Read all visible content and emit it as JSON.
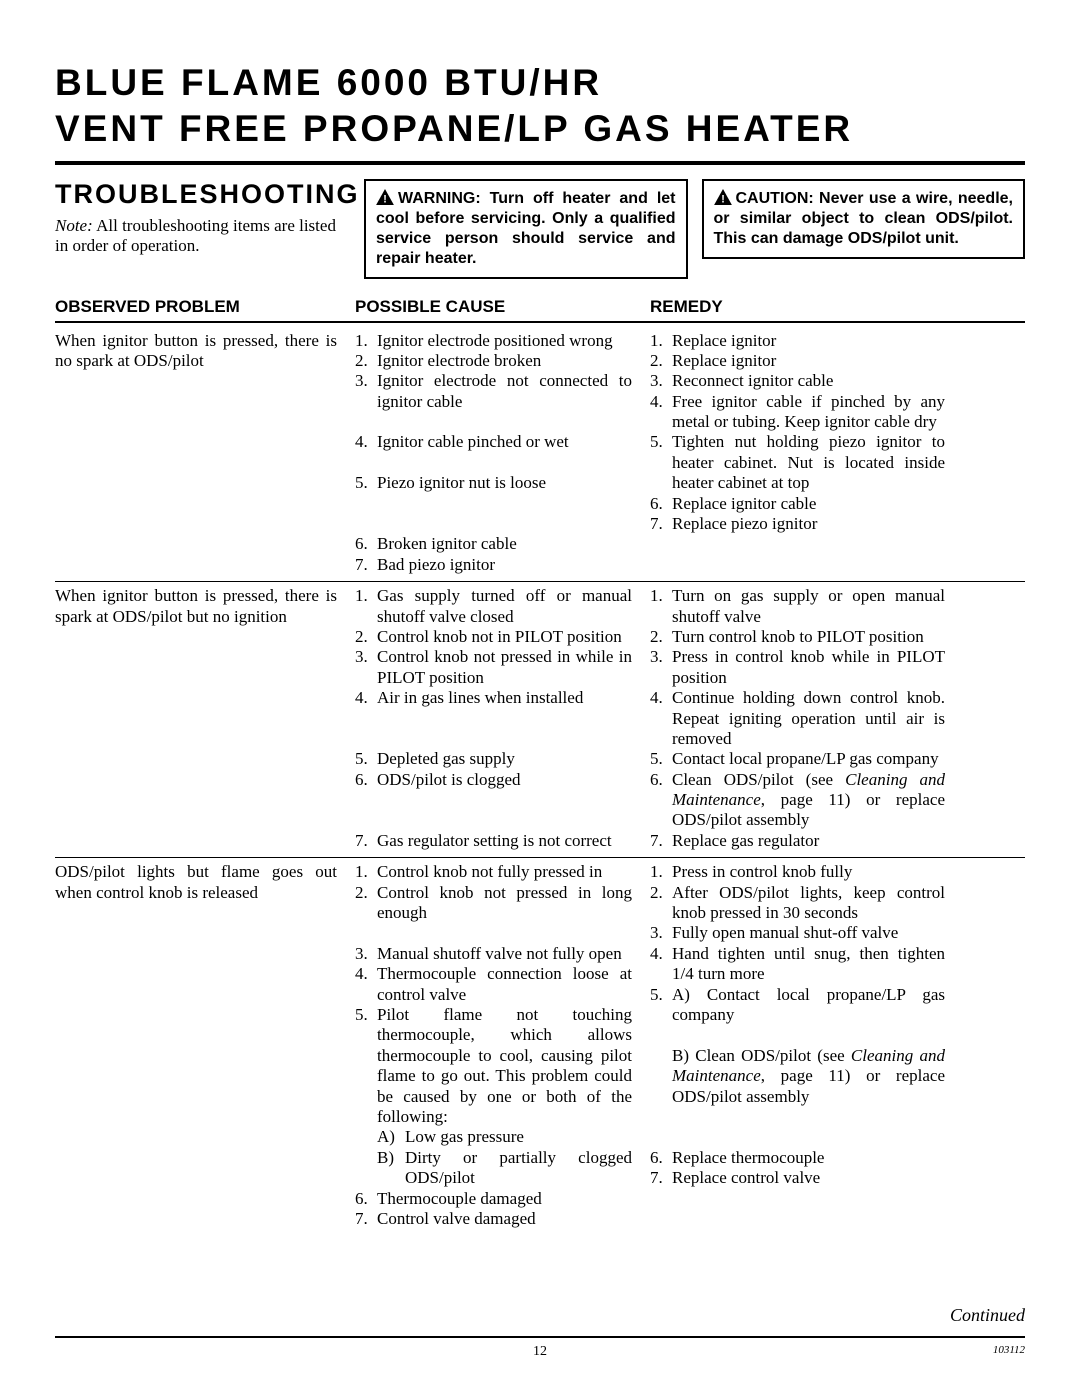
{
  "title_line1": "BLUE FLAME 6000 BTU/HR",
  "title_line2": "VENT FREE PROPANE/LP GAS HEATER",
  "section_heading": "TROUBLESHOOTING",
  "note_label": "Note:",
  "note_body": " All troubleshooting items are listed in order of operation.",
  "warning_box": "WARNING: Turn off heater and let cool before servicing. Only a qualified service person should service and repair heater.",
  "caution_box": "CAUTION: Never use a wire, needle, or similar object to clean ODS/pilot. This can damage ODS/pilot unit.",
  "headers": {
    "observed": "OBSERVED PROBLEM",
    "cause": "POSSIBLE CAUSE",
    "remedy": "REMEDY"
  },
  "rows": [
    {
      "problem": "When ignitor button is pressed, there is no spark at ODS/pilot",
      "causes": [
        "Ignitor electrode positioned wrong",
        "Ignitor electrode broken",
        "Ignitor electrode not connected to ignitor cable",
        "Ignitor cable pinched or wet",
        "Piezo ignitor nut is loose",
        "Broken ignitor cable",
        "Bad piezo ignitor"
      ],
      "remedies": [
        "Replace ignitor",
        "Replace ignitor",
        "Reconnect ignitor cable",
        "Free ignitor cable if pinched by any metal or tubing. Keep ignitor cable dry",
        "Tighten nut holding piezo ignitor to heater cabinet. Nut is located inside heater cabinet at top",
        "Replace ignitor cable",
        "Replace piezo ignitor"
      ],
      "cause_tall": {
        "2": 1,
        "3": 1,
        "4": 2
      },
      "remedy_tall": {}
    },
    {
      "problem": "When ignitor button is pressed, there is spark at ODS/pilot but no ignition",
      "causes": [
        "Gas supply turned off or manual shutoff valve closed",
        "Control knob not in PILOT position",
        "Control knob not pressed in while in PILOT position",
        "Air in gas lines when installed",
        "Depleted gas supply",
        "ODS/pilot is clogged",
        "Gas regulator setting is not correct"
      ],
      "remedies": [
        "Turn on gas supply or open manual shutoff valve",
        "Turn control knob to PILOT position",
        "Press in control knob while in PILOT position",
        "Continue holding down control knob. Repeat igniting operation until air is removed",
        "Contact local propane/LP gas company",
        "Clean ODS/pilot (see <em>Cleaning and Maintenance</em>, page 11) or replace ODS/pilot assembly",
        "Replace gas regulator"
      ],
      "cause_tall": {
        "3": 2,
        "5": 2
      },
      "remedy_tall": {}
    },
    {
      "problem": "ODS/pilot lights but flame goes out when control knob is released",
      "causes": [
        "Control knob not fully pressed in",
        "Control knob not pressed in long enough",
        "Manual shutoff valve not fully open",
        "Thermocouple connection loose at control valve",
        "Pilot flame not touching thermocouple, which allows thermocouple to cool, causing pilot flame to go out. This problem could be caused by one or both of the following:",
        "Thermocouple damaged",
        "Control valve damaged"
      ],
      "cause5_sub": [
        {
          "k": "A)",
          "v": "Low gas pressure"
        },
        {
          "k": "B)",
          "v": "Dirty or partially clogged ODS/pilot"
        }
      ],
      "remedies": [
        "Press in control knob fully",
        "After ODS/pilot lights, keep control knob pressed in 30 seconds",
        "Fully open manual shut-off valve",
        "Hand tighten until snug, then tighten 1/4 turn more",
        "A) Contact local propane/LP gas company",
        "Replace thermocouple",
        "Replace control valve"
      ],
      "remedy5b": "B) Clean ODS/pilot (see <em>Cleaning and Maintenance</em>, page 11) or replace ODS/pilot assembly",
      "cause_tall": {
        "1": 1
      },
      "remedy_tall": {}
    }
  ],
  "continued": "Continued",
  "page_num": "12",
  "doc_num": "103112",
  "colors": {
    "text": "#000000",
    "bg": "#ffffff",
    "border": "#000000"
  }
}
